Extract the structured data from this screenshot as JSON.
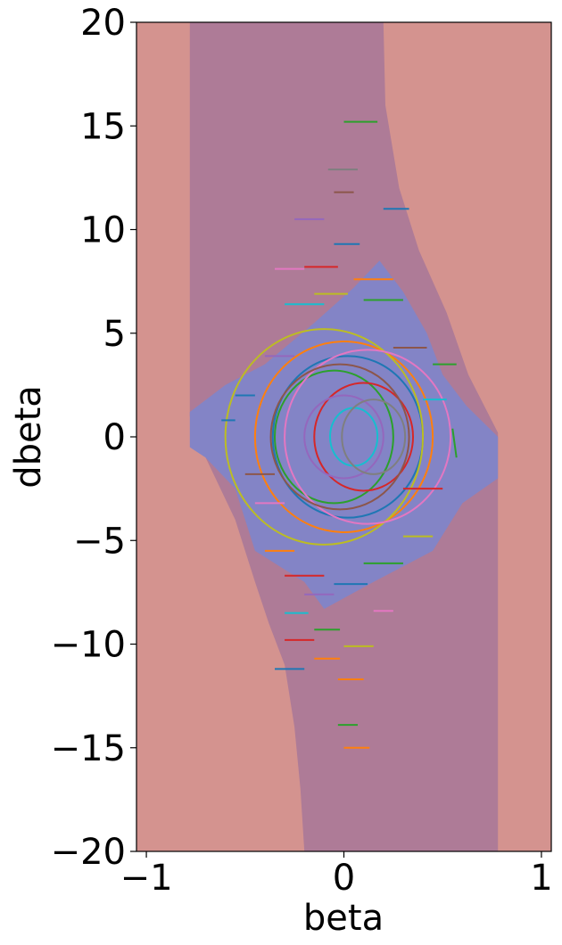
{
  "chart_data": {
    "type": "contour-with-trajectories",
    "title": "",
    "xlabel": "beta",
    "ylabel": "dbeta",
    "xlim": [
      -1.05,
      1.05
    ],
    "ylim": [
      -20,
      20
    ],
    "x_ticks": [
      -1,
      0,
      1
    ],
    "x_tick_labels": [
      "−1",
      "0",
      "1"
    ],
    "y_ticks": [
      -20,
      -15,
      -10,
      -5,
      0,
      5,
      10,
      15,
      20
    ],
    "y_tick_labels": [
      "−20",
      "−15",
      "−10",
      "−5",
      "0",
      "5",
      "10",
      "15",
      "20"
    ],
    "regions": [
      {
        "name": "outer",
        "color": "#d4938f"
      },
      {
        "name": "middle-band",
        "color": "#ae7b97",
        "left_boundary": [
          [
            -0.78,
            20
          ],
          [
            -0.78,
            1
          ],
          [
            -0.7,
            -1
          ],
          [
            -0.55,
            -4
          ],
          [
            -0.45,
            -7
          ],
          [
            -0.38,
            -9
          ],
          [
            -0.3,
            -11
          ],
          [
            -0.25,
            -14
          ],
          [
            -0.22,
            -17
          ],
          [
            -0.2,
            -20
          ]
        ],
        "right_boundary": [
          [
            0.2,
            20
          ],
          [
            0.21,
            16
          ],
          [
            0.28,
            12
          ],
          [
            0.38,
            9
          ],
          [
            0.52,
            6
          ],
          [
            0.63,
            3
          ],
          [
            0.78,
            0.2
          ],
          [
            0.78,
            -20
          ]
        ]
      },
      {
        "name": "inner-region",
        "color": "#8384c6",
        "boundary": [
          [
            -0.78,
            1.2
          ],
          [
            -0.6,
            2.5
          ],
          [
            -0.4,
            3.5
          ],
          [
            -0.15,
            5.5
          ],
          [
            0.05,
            7.2
          ],
          [
            0.18,
            8.5
          ],
          [
            0.3,
            7.0
          ],
          [
            0.42,
            5.0
          ],
          [
            0.5,
            3.0
          ],
          [
            0.62,
            1.5
          ],
          [
            0.78,
            0.0
          ],
          [
            0.78,
            -2.0
          ],
          [
            0.6,
            -3.2
          ],
          [
            0.45,
            -5.5
          ],
          [
            0.15,
            -7.0
          ],
          [
            -0.1,
            -8.3
          ],
          [
            -0.2,
            -7.0
          ],
          [
            -0.45,
            -5.5
          ],
          [
            -0.55,
            -2.5
          ],
          [
            -0.7,
            -1.0
          ],
          [
            -0.78,
            -0.5
          ]
        ]
      }
    ],
    "palette": [
      "#1f77b4",
      "#ff7f0e",
      "#2ca02c",
      "#d62728",
      "#9467bd",
      "#8c564b",
      "#e377c2",
      "#7f7f7f",
      "#bcbd22",
      "#17becf"
    ],
    "trajectories": {
      "segments": [
        {
          "x": [
            0.0,
            0.17
          ],
          "y": [
            15.2,
            15.2
          ],
          "color": "#2ca02c"
        },
        {
          "x": [
            -0.08,
            0.07
          ],
          "y": [
            12.9,
            12.9
          ],
          "color": "#7f7f7f"
        },
        {
          "x": [
            -0.05,
            0.05
          ],
          "y": [
            11.8,
            11.8
          ],
          "color": "#8c564b"
        },
        {
          "x": [
            0.2,
            0.33
          ],
          "y": [
            11.0,
            11.0
          ],
          "color": "#1f77b4"
        },
        {
          "x": [
            -0.25,
            -0.1
          ],
          "y": [
            10.5,
            10.5
          ],
          "color": "#9467bd"
        },
        {
          "x": [
            -0.05,
            0.08
          ],
          "y": [
            9.3,
            9.3
          ],
          "color": "#1f77b4"
        },
        {
          "x": [
            -0.2,
            -0.03
          ],
          "y": [
            8.2,
            8.2
          ],
          "color": "#d62728"
        },
        {
          "x": [
            -0.35,
            -0.2
          ],
          "y": [
            8.1,
            8.1
          ],
          "color": "#e377c2"
        },
        {
          "x": [
            0.05,
            0.25
          ],
          "y": [
            7.6,
            7.6
          ],
          "color": "#ff7f0e"
        },
        {
          "x": [
            -0.15,
            0.02
          ],
          "y": [
            6.9,
            6.9
          ],
          "color": "#bcbd22"
        },
        {
          "x": [
            0.1,
            0.3
          ],
          "y": [
            6.6,
            6.6
          ],
          "color": "#2ca02c"
        },
        {
          "x": [
            -0.3,
            -0.1
          ],
          "y": [
            6.4,
            6.4
          ],
          "color": "#17becf"
        },
        {
          "x": [
            0.25,
            0.42
          ],
          "y": [
            4.3,
            4.3
          ],
          "color": "#8c564b"
        },
        {
          "x": [
            -0.4,
            -0.25
          ],
          "y": [
            3.9,
            3.9
          ],
          "color": "#9467bd"
        },
        {
          "x": [
            0.45,
            0.57
          ],
          "y": [
            3.5,
            3.5
          ],
          "color": "#2ca02c"
        },
        {
          "x": [
            -0.55,
            -0.45
          ],
          "y": [
            2.0,
            2.0
          ],
          "color": "#1f77b4"
        },
        {
          "x": [
            0.4,
            0.52
          ],
          "y": [
            1.8,
            1.8
          ],
          "color": "#17becf"
        },
        {
          "x": [
            -0.62,
            -0.55
          ],
          "y": [
            0.8,
            0.8
          ],
          "color": "#1f77b4"
        },
        {
          "x": [
            0.55,
            0.57
          ],
          "y": [
            0.4,
            -1.0
          ],
          "color": "#2ca02c"
        },
        {
          "x": [
            -0.5,
            -0.35
          ],
          "y": [
            -1.8,
            -1.8
          ],
          "color": "#8c564b"
        },
        {
          "x": [
            0.3,
            0.5
          ],
          "y": [
            -2.5,
            -2.5
          ],
          "color": "#d62728"
        },
        {
          "x": [
            -0.45,
            -0.3
          ],
          "y": [
            -3.2,
            -3.2
          ],
          "color": "#e377c2"
        },
        {
          "x": [
            0.3,
            0.45
          ],
          "y": [
            -4.8,
            -4.8
          ],
          "color": "#bcbd22"
        },
        {
          "x": [
            -0.4,
            -0.25
          ],
          "y": [
            -5.5,
            -5.5
          ],
          "color": "#ff7f0e"
        },
        {
          "x": [
            0.1,
            0.3
          ],
          "y": [
            -6.1,
            -6.1
          ],
          "color": "#2ca02c"
        },
        {
          "x": [
            -0.3,
            -0.1
          ],
          "y": [
            -6.7,
            -6.7
          ],
          "color": "#d62728"
        },
        {
          "x": [
            -0.05,
            0.12
          ],
          "y": [
            -7.1,
            -7.1
          ],
          "color": "#1f77b4"
        },
        {
          "x": [
            -0.2,
            -0.05
          ],
          "y": [
            -7.6,
            -7.6
          ],
          "color": "#9467bd"
        },
        {
          "x": [
            -0.3,
            -0.18
          ],
          "y": [
            -8.5,
            -8.5
          ],
          "color": "#17becf"
        },
        {
          "x": [
            0.15,
            0.25
          ],
          "y": [
            -8.4,
            -8.4
          ],
          "color": "#e377c2"
        },
        {
          "x": [
            -0.15,
            -0.02
          ],
          "y": [
            -9.3,
            -9.3
          ],
          "color": "#2ca02c"
        },
        {
          "x": [
            -0.3,
            -0.15
          ],
          "y": [
            -9.8,
            -9.8
          ],
          "color": "#d62728"
        },
        {
          "x": [
            0.0,
            0.15
          ],
          "y": [
            -10.1,
            -10.1
          ],
          "color": "#bcbd22"
        },
        {
          "x": [
            -0.15,
            -0.02
          ],
          "y": [
            -10.7,
            -10.7
          ],
          "color": "#ff7f0e"
        },
        {
          "x": [
            -0.35,
            -0.2
          ],
          "y": [
            -11.2,
            -11.2
          ],
          "color": "#1f77b4"
        },
        {
          "x": [
            -0.03,
            0.1
          ],
          "y": [
            -11.7,
            -11.7
          ],
          "color": "#ff7f0e"
        },
        {
          "x": [
            -0.03,
            0.07
          ],
          "y": [
            -13.9,
            -13.9
          ],
          "color": "#2ca02c"
        },
        {
          "x": [
            0.0,
            0.13
          ],
          "y": [
            -15.0,
            -15.0
          ],
          "color": "#ff7f0e"
        }
      ],
      "arcs": [
        {
          "cx": 0.0,
          "cy": 0.0,
          "rx": 0.45,
          "ry": 4.6,
          "color": "#ff7f0e"
        },
        {
          "cx": 0.02,
          "cy": 0.0,
          "rx": 0.38,
          "ry": 3.9,
          "color": "#1f77b4"
        },
        {
          "cx": -0.05,
          "cy": 0.0,
          "rx": 0.3,
          "ry": 3.2,
          "color": "#2ca02c"
        },
        {
          "cx": 0.1,
          "cy": 0.0,
          "rx": 0.25,
          "ry": 2.6,
          "color": "#d62728"
        },
        {
          "cx": 0.0,
          "cy": 0.0,
          "rx": 0.2,
          "ry": 2.0,
          "color": "#9467bd"
        },
        {
          "cx": 0.05,
          "cy": 0.0,
          "rx": 0.12,
          "ry": 1.4,
          "color": "#17becf"
        },
        {
          "cx": -0.1,
          "cy": 0.0,
          "rx": 0.5,
          "ry": 5.2,
          "color": "#bcbd22"
        },
        {
          "cx": 0.12,
          "cy": 0.0,
          "rx": 0.42,
          "ry": 4.2,
          "color": "#e377c2"
        },
        {
          "cx": -0.02,
          "cy": 0.0,
          "rx": 0.35,
          "ry": 3.5,
          "color": "#8c564b"
        },
        {
          "cx": 0.15,
          "cy": 0.0,
          "rx": 0.16,
          "ry": 1.8,
          "color": "#7f7f7f"
        }
      ]
    }
  }
}
